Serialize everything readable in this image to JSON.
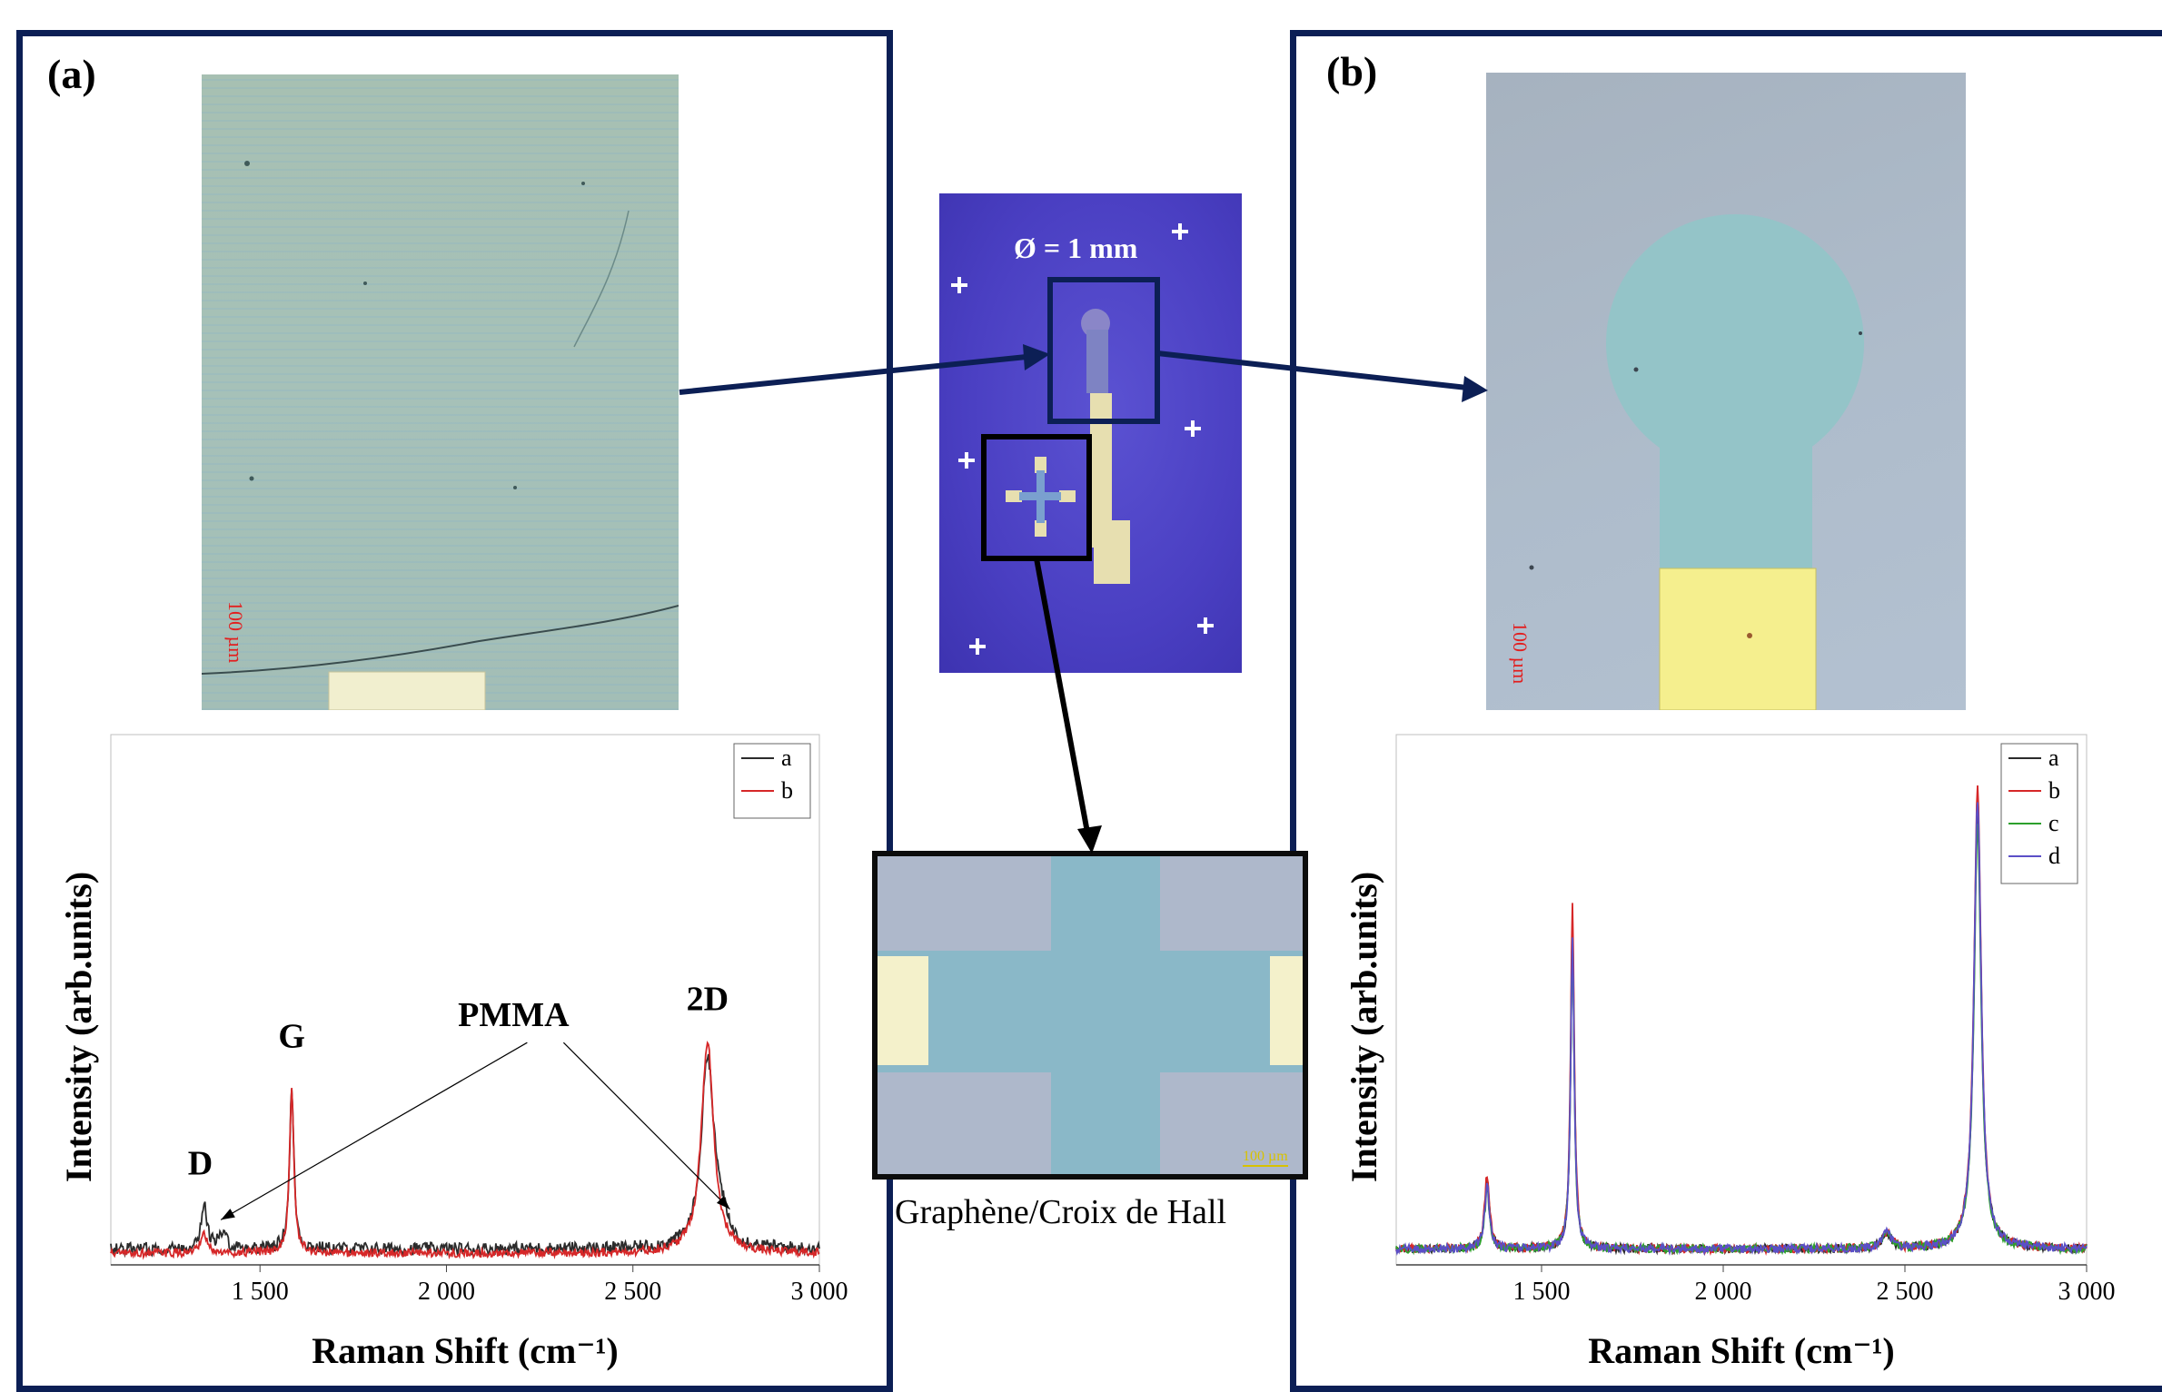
{
  "panels": {
    "a": {
      "label": "(a)",
      "scale_label": "100 µm"
    },
    "b": {
      "label": "(b)",
      "scale_label": "100 µm"
    }
  },
  "center": {
    "diameter_label": "Ø = 1 mm",
    "hall_scale_label": "100 µm",
    "caption": "Graphène/Croix de Hall"
  },
  "colors": {
    "frame": "#0c1f55",
    "spectrum_a": "#2b2b2b",
    "spectrum_b": "#d62728",
    "spectrum_c": "#2ca02c",
    "spectrum_d": "#5b4fc7"
  },
  "chart_data": [
    {
      "type": "line",
      "xlabel": "Raman Shift (cm⁻¹)",
      "ylabel": "Intensity (arb.units)",
      "xlim": [
        1100,
        3000
      ],
      "ylim": [
        0,
        1.0
      ],
      "x_ticks": [
        1500,
        2000,
        2500,
        3000
      ],
      "x_tick_labels": [
        "1 500",
        "2 000",
        "2 500",
        "3 000"
      ],
      "legend": "top-right",
      "peak_labels": [
        "D",
        "G",
        "2D"
      ],
      "annotation": "PMMA",
      "series": [
        {
          "name": "a",
          "color": "#2b2b2b",
          "baseline": 0.03,
          "noise": 0.012,
          "peaks": [
            {
              "x": 1350,
              "h": 0.08,
              "w": 10
            },
            {
              "x": 1400,
              "h": 0.025,
              "w": 15
            },
            {
              "x": 1585,
              "h": 0.3,
              "w": 7
            },
            {
              "x": 2700,
              "h": 0.36,
              "w": 20
            },
            {
              "x": 2735,
              "h": 0.04,
              "w": 20
            }
          ]
        },
        {
          "name": "b",
          "color": "#d62728",
          "baseline": 0.022,
          "noise": 0.008,
          "peaks": [
            {
              "x": 1350,
              "h": 0.035,
              "w": 10
            },
            {
              "x": 1585,
              "h": 0.31,
              "w": 7
            },
            {
              "x": 2700,
              "h": 0.4,
              "w": 20
            }
          ]
        }
      ]
    },
    {
      "type": "line",
      "xlabel": "Raman Shift (cm⁻¹)",
      "ylabel": "Intensity (arb.units)",
      "xlim": [
        1100,
        3000
      ],
      "ylim": [
        0,
        1.0
      ],
      "x_ticks": [
        1500,
        2000,
        2500,
        3000
      ],
      "x_tick_labels": [
        "1 500",
        "2 000",
        "2 500",
        "3 000"
      ],
      "legend": "top-right",
      "series": [
        {
          "name": "a",
          "color": "#2b2b2b",
          "baseline": 0.03,
          "noise": 0.008,
          "peaks": [
            {
              "x": 1350,
              "h": 0.13,
              "w": 8
            },
            {
              "x": 1585,
              "h": 0.6,
              "w": 6
            },
            {
              "x": 2450,
              "h": 0.03,
              "w": 15
            },
            {
              "x": 2700,
              "h": 0.83,
              "w": 12
            }
          ]
        },
        {
          "name": "b",
          "color": "#d62728",
          "baseline": 0.03,
          "noise": 0.008,
          "peaks": [
            {
              "x": 1350,
              "h": 0.14,
              "w": 8
            },
            {
              "x": 1585,
              "h": 0.66,
              "w": 6
            },
            {
              "x": 2450,
              "h": 0.03,
              "w": 15
            },
            {
              "x": 2700,
              "h": 0.87,
              "w": 12
            }
          ]
        },
        {
          "name": "c",
          "color": "#2ca02c",
          "baseline": 0.03,
          "noise": 0.008,
          "peaks": [
            {
              "x": 1350,
              "h": 0.11,
              "w": 8
            },
            {
              "x": 1585,
              "h": 0.57,
              "w": 6
            },
            {
              "x": 2450,
              "h": 0.03,
              "w": 15
            },
            {
              "x": 2700,
              "h": 0.8,
              "w": 12
            }
          ]
        },
        {
          "name": "d",
          "color": "#5b4fc7",
          "baseline": 0.03,
          "noise": 0.008,
          "peaks": [
            {
              "x": 1350,
              "h": 0.12,
              "w": 8
            },
            {
              "x": 1585,
              "h": 0.58,
              "w": 6
            },
            {
              "x": 2450,
              "h": 0.03,
              "w": 15
            },
            {
              "x": 2700,
              "h": 0.85,
              "w": 12
            }
          ]
        }
      ]
    }
  ]
}
